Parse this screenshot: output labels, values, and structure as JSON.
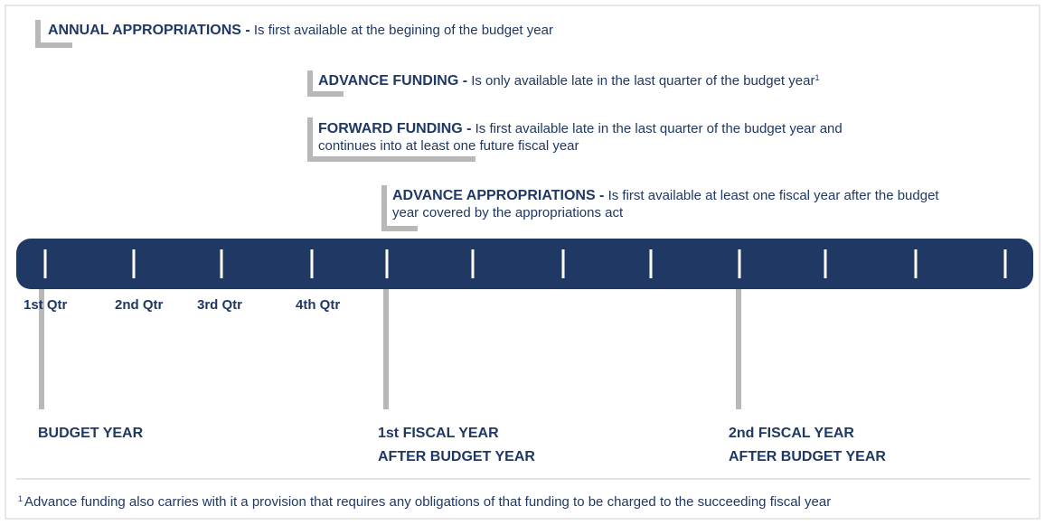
{
  "items": [
    {
      "term": "ANNUAL APPROPRIATIONS -",
      "desc": [
        "Is first available at the begining of the budget year"
      ]
    },
    {
      "term": "ADVANCE FUNDING -",
      "desc": [
        "Is only available late in the last quarter of the budget year"
      ],
      "note": "1"
    },
    {
      "term": "FORWARD FUNDING -",
      "desc": [
        "Is first available late in the last quarter of the budget year and",
        "continues into at least one future fiscal year"
      ]
    },
    {
      "term": "ADVANCE APPROPRIATIONS -",
      "desc": [
        "Is first available at least one fiscal year after the budget",
        "year covered by the appropriations act"
      ]
    }
  ],
  "quarters": [
    "1st Qtr",
    "2nd Qtr",
    "3rd Qtr",
    "4th Qtr"
  ],
  "years": [
    [
      "BUDGET YEAR"
    ],
    [
      "1st FISCAL YEAR",
      "AFTER BUDGET YEAR"
    ],
    [
      "2nd FISCAL YEAR",
      "AFTER BUDGET YEAR"
    ]
  ],
  "footnote": {
    "marker": "1",
    "text": "Advance funding also carries with it a provision that requires any obligations of that funding to be charged to the succeeding fiscal year"
  }
}
